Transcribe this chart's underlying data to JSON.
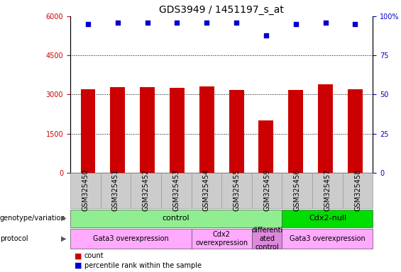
{
  "title": "GDS3949 / 1451197_s_at",
  "samples": [
    "GSM325450",
    "GSM325451",
    "GSM325452",
    "GSM325453",
    "GSM325454",
    "GSM325455",
    "GSM325459",
    "GSM325456",
    "GSM325457",
    "GSM325458"
  ],
  "counts": [
    3200,
    3280,
    3290,
    3270,
    3300,
    3170,
    2000,
    3170,
    3380,
    3190
  ],
  "percentile_ranks": [
    95,
    96,
    96,
    96,
    96,
    96,
    88,
    95,
    96,
    95
  ],
  "ylim_left": [
    0,
    6000
  ],
  "ylim_right": [
    0,
    100
  ],
  "yticks_left": [
    0,
    1500,
    3000,
    4500,
    6000
  ],
  "yticks_right": [
    0,
    25,
    50,
    75,
    100
  ],
  "bar_color": "#cc0000",
  "scatter_color": "#0000cc",
  "background_color": "#ffffff",
  "genotype_groups": [
    {
      "label": "control",
      "start": 0,
      "end": 7,
      "color": "#90ee90"
    },
    {
      "label": "Cdx2-null",
      "start": 7,
      "end": 10,
      "color": "#00dd00"
    }
  ],
  "protocol_groups": [
    {
      "label": "Gata3 overexpression",
      "start": 0,
      "end": 4,
      "color": "#ffaaff"
    },
    {
      "label": "Cdx2\noverexpression",
      "start": 4,
      "end": 6,
      "color": "#ffaaff"
    },
    {
      "label": "differenti\nated\ncontrol",
      "start": 6,
      "end": 7,
      "color": "#dd88dd"
    },
    {
      "label": "Gata3 overexpression",
      "start": 7,
      "end": 10,
      "color": "#ffaaff"
    }
  ],
  "legend_count_color": "#cc0000",
  "legend_pct_color": "#0000cc",
  "title_fontsize": 10,
  "tick_fontsize": 7,
  "label_fontsize": 8,
  "annot_fontsize": 7,
  "row_label_fontsize": 8
}
